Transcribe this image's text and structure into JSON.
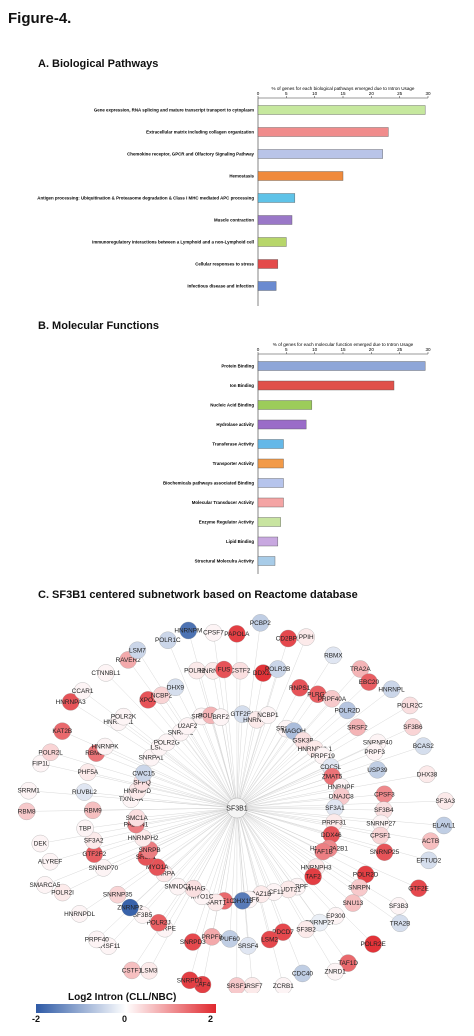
{
  "figure_title": "Figure-4.",
  "section_a_title": "A. Biological Pathways",
  "section_b_title": "B. Molecular Functions",
  "section_c_title": "C. SF3B1 centered subnetwork based on Reactome database",
  "chart_data": [
    {
      "type": "bar",
      "orientation": "horizontal",
      "title": "% of genes for each biological pathways emerged due to Intron Usage",
      "xlim": [
        0,
        30
      ],
      "xticks": [
        0,
        5,
        10,
        15,
        20,
        25,
        30
      ],
      "grid": false,
      "categories": [
        "Gene expression, RNA splicing and mature transcript transport to cytoplasm",
        "Extracellular matrix including collagen organization",
        "Chemokine receptor, GPCR and Olfactory Signaling Pathway",
        "Hemostasis",
        "Antigen processing: Ubiquitination & Proteasome degradation & Class I MHC mediated APC processing",
        "Muscle contraction",
        "Immunoregulatory interactions between a Lymphoid and a non-Lymphoid cell",
        "Cellular responses to stress",
        "Infectious disease and infection"
      ],
      "values": [
        29.5,
        23,
        22,
        15,
        6.5,
        6,
        5,
        3.5,
        3.2
      ],
      "colors": [
        "#c6e89e",
        "#f08c8c",
        "#b9c4e8",
        "#f08a3c",
        "#5fc3e8",
        "#9a78c8",
        "#b7d66a",
        "#e44a4a",
        "#6a8ad0"
      ]
    },
    {
      "type": "bar",
      "orientation": "horizontal",
      "title": "% of genes for each molecular function emerged due to Intron Usage",
      "xlim": [
        0,
        30
      ],
      "xticks": [
        0,
        5,
        10,
        15,
        20,
        25,
        30
      ],
      "grid": false,
      "categories": [
        "Protein Binding",
        "Ion Binding",
        "Nucleic Acid Binding",
        "Hydrolase activity",
        "Transferase Activity",
        "Transporter Activity",
        "Biochemicals pathways associated Binding",
        "Molecular Transducer Activity",
        "Enzyme Regulator Activity",
        "Lipid Binding",
        "Structural Moleculra Activity"
      ],
      "values": [
        29.5,
        24,
        9.5,
        8.5,
        4.5,
        4.5,
        4.5,
        4.5,
        4,
        3.5,
        3
      ],
      "colors": [
        "#8ea6d8",
        "#e0504a",
        "#9ccc5a",
        "#9a6cc8",
        "#64b8e8",
        "#f29a48",
        "#b6c4ec",
        "#f4a4a4",
        "#c8e4a0",
        "#c8a8e0",
        "#a8cce8"
      ]
    }
  ],
  "network": {
    "hub": "SF3B1",
    "nodes": [
      {
        "label": "PAPOLA",
        "v": 1.8
      },
      {
        "label": "CSTF2",
        "v": 0.3
      },
      {
        "label": "GTF2F1",
        "v": -0.4
      },
      {
        "label": "PCBP2",
        "v": -0.6
      },
      {
        "label": "DDX23",
        "v": 1.9
      },
      {
        "label": "HNRNPC",
        "v": 0.2
      },
      {
        "label": "CD2BP2",
        "v": 1.7
      },
      {
        "label": "POLR2B",
        "v": -0.5
      },
      {
        "label": "NCBP1",
        "v": 0.1
      },
      {
        "label": "PPIH",
        "v": 0.2
      },
      {
        "label": "RNPS1",
        "v": 1.6
      },
      {
        "label": "SRSF3",
        "v": 0.1
      },
      {
        "label": "RBMX",
        "v": -0.3
      },
      {
        "label": "PLRG1",
        "v": 1.5
      },
      {
        "label": "MAGOH",
        "v": -0.8
      },
      {
        "label": "TRA2A",
        "v": 0.7
      },
      {
        "label": "PRPF40A",
        "v": 0.5
      },
      {
        "label": "GSK3B",
        "v": 0.3
      },
      {
        "label": "EBC20",
        "v": 1.5
      },
      {
        "label": "POLR2D",
        "v": -0.7
      },
      {
        "label": "HNRNPUL1",
        "v": 0.2
      },
      {
        "label": "HNRNPL",
        "v": -0.5
      },
      {
        "label": "SRSF2",
        "v": 0.7
      },
      {
        "label": "PRPF19",
        "v": 0.1
      },
      {
        "label": "POLR2C",
        "v": 0.3
      },
      {
        "label": "SNRNP40",
        "v": 0.1
      },
      {
        "label": "CDC5L",
        "v": -0.3
      },
      {
        "label": "SF3B6",
        "v": 0.4
      },
      {
        "label": "PRPF3",
        "v": 0.1
      },
      {
        "label": "ZMAT5",
        "v": 1.3
      },
      {
        "label": "BCAS2",
        "v": -0.4
      },
      {
        "label": "USP39",
        "v": -0.6
      },
      {
        "label": "HNRNPF",
        "v": 0.1
      },
      {
        "label": "DHX38",
        "v": 0.2
      },
      {
        "label": "CPSF3",
        "v": 1.1
      },
      {
        "label": "DNAJC8",
        "v": 0.5
      },
      {
        "label": "SF3A3",
        "v": 0.2
      },
      {
        "label": "SF3B4",
        "v": 0.3
      },
      {
        "label": "SF3A1",
        "v": -0.3
      },
      {
        "label": "ELAVL1",
        "v": -0.6
      },
      {
        "label": "SNRNP27",
        "v": 0.1
      },
      {
        "label": "PRPF31",
        "v": 0.2
      },
      {
        "label": "ACTB",
        "v": 0.6
      },
      {
        "label": "CPSF1",
        "v": 0.4
      },
      {
        "label": "DDX46",
        "v": 1.6
      },
      {
        "label": "EFTUD2",
        "v": -0.4
      },
      {
        "label": "SNRNP25",
        "v": 1.6
      },
      {
        "label": "HNRNPA2B1",
        "v": 1.1
      },
      {
        "label": "GTF2E",
        "v": 1.7
      },
      {
        "label": "POLR2D",
        "v": 1.8
      },
      {
        "label": "TAF1B",
        "v": 1.2
      },
      {
        "label": "SF3B3",
        "v": 0.1
      },
      {
        "label": "SNRPN",
        "v": 0.5
      },
      {
        "label": "HNRNPH3",
        "v": 0.2
      },
      {
        "label": "TRA2B",
        "v": -0.4
      },
      {
        "label": "SNU13",
        "v": 0.6
      },
      {
        "label": "TAF2",
        "v": 1.8
      },
      {
        "label": "POLR2E",
        "v": 1.9
      },
      {
        "label": "EP300",
        "v": 0.1
      },
      {
        "label": "SNRPF",
        "v": 0.1
      },
      {
        "label": "TAF1D",
        "v": 1.4
      },
      {
        "label": "SNRNP27",
        "v": -0.2
      },
      {
        "label": "NUDT21",
        "v": 0.2
      },
      {
        "label": "ZNRD1",
        "v": 0.1
      },
      {
        "label": "SF3B2",
        "v": 0.2
      },
      {
        "label": "PCF11",
        "v": 0.1
      },
      {
        "label": "CDC40",
        "v": -0.6
      },
      {
        "label": "PDCD7",
        "v": 1.7
      },
      {
        "label": "BAZ1B",
        "v": 0.2
      },
      {
        "label": "ZCRB1",
        "v": 0.1
      },
      {
        "label": "LSM2",
        "v": 1.7
      },
      {
        "label": "SRSF6",
        "v": 0.1
      },
      {
        "label": "SRSF7",
        "v": 0.2
      },
      {
        "label": "SRSF4",
        "v": -0.3
      },
      {
        "label": "DHX15",
        "v": -1.6
      },
      {
        "label": "SRSF1",
        "v": 0.5
      },
      {
        "label": "PUF60",
        "v": -0.6
      },
      {
        "label": "TAF1C",
        "v": 1.4
      },
      {
        "label": "TAF4",
        "v": 1.8
      },
      {
        "label": "PRPF8",
        "v": 0.8
      },
      {
        "label": "SART1",
        "v": 0.2
      },
      {
        "label": "SNRPD1",
        "v": 1.8
      },
      {
        "label": "SNRPD3",
        "v": 1.7
      },
      {
        "label": "MYO1C",
        "v": 0.1
      },
      {
        "label": "LSM3",
        "v": 0.2
      },
      {
        "label": "SNRPE",
        "v": 0.1
      },
      {
        "label": "YWHAG",
        "v": 0.3
      },
      {
        "label": "CSTF1",
        "v": 0.6
      },
      {
        "label": "POLR2J",
        "v": 1.5
      },
      {
        "label": "SMNDC1",
        "v": 0.1
      },
      {
        "label": "SRSF11",
        "v": 0.1
      },
      {
        "label": "SF3B5",
        "v": 0.1
      },
      {
        "label": "SNRPA",
        "v": 0.2
      },
      {
        "label": "PRPF40",
        "v": 0.1
      },
      {
        "label": "ZNRNP2",
        "v": -1.9
      },
      {
        "label": "MYO1A",
        "v": 1.6
      },
      {
        "label": "HNRNPDL",
        "v": 0.1
      },
      {
        "label": "SNRNP35",
        "v": 0.4
      },
      {
        "label": "SRSF1",
        "v": 1.6
      },
      {
        "label": "POLR2I",
        "v": 0.2
      },
      {
        "label": "SNRNP70",
        "v": 0.1
      },
      {
        "label": "SNRPB",
        "v": 1.2
      },
      {
        "label": "SMARCA5",
        "v": 0.1
      },
      {
        "label": "GTF2F2",
        "v": 1.5
      },
      {
        "label": "HNRNPH2",
        "v": 0.2
      },
      {
        "label": "ALYREF",
        "v": 0.1
      },
      {
        "label": "SF3A2",
        "v": 0.2
      },
      {
        "label": "PABPN1",
        "v": 1.2
      },
      {
        "label": "DEK",
        "v": 0.1
      },
      {
        "label": "TBP",
        "v": 0.1
      },
      {
        "label": "SMC1A",
        "v": 0.3
      },
      {
        "label": "RBM8",
        "v": 0.5
      },
      {
        "label": "RBM9",
        "v": 0.6
      },
      {
        "label": "TXNL4A",
        "v": 0.1
      },
      {
        "label": "SRRM1",
        "v": 0.1
      },
      {
        "label": "RUVBL2",
        "v": -0.3
      },
      {
        "label": "HNRNPD",
        "v": 0.2
      },
      {
        "label": "FIP1L",
        "v": 0.1
      },
      {
        "label": "PHF5A",
        "v": 0.2
      },
      {
        "label": "SFPQ",
        "v": 0.3
      },
      {
        "label": "POLR2L",
        "v": 0.4
      },
      {
        "label": "RBM8A",
        "v": 1.3
      },
      {
        "label": "CWC15",
        "v": -0.5
      },
      {
        "label": "KAT2B",
        "v": 1.4
      },
      {
        "label": "HNRNPK",
        "v": 0.1
      },
      {
        "label": "SNRPA1",
        "v": 0.1
      },
      {
        "label": "HNRNPA3",
        "v": 1.6
      },
      {
        "label": "HNRNPA1",
        "v": 0.1
      },
      {
        "label": "LSM6",
        "v": 0.1
      },
      {
        "label": "CCAR1",
        "v": 0.1
      },
      {
        "label": "POLR2K",
        "v": 0.1
      },
      {
        "label": "POLR2G",
        "v": 0.1
      },
      {
        "label": "CTNNBL1",
        "v": 0.1
      },
      {
        "label": "XPO1",
        "v": 1.6
      },
      {
        "label": "SNRPB2",
        "v": 0.1
      },
      {
        "label": "RAVER2",
        "v": 0.8
      },
      {
        "label": "NCBP2",
        "v": 0.4
      },
      {
        "label": "U2AF2",
        "v": 0.1
      },
      {
        "label": "LSM7",
        "v": -0.5
      },
      {
        "label": "DHX9",
        "v": -0.4
      },
      {
        "label": "SRP72",
        "v": 0.1
      },
      {
        "label": "POLR1C",
        "v": -0.5
      },
      {
        "label": "POLR2A",
        "v": 0.2
      },
      {
        "label": "POLR1A",
        "v": 0.7
      },
      {
        "label": "HNRNPM",
        "v": -1.7
      },
      {
        "label": "HNRNPR",
        "v": 0.2
      },
      {
        "label": "BRF2",
        "v": 0.1
      },
      {
        "label": "CPSF7",
        "v": 0.1
      },
      {
        "label": "FUS",
        "v": 1.6
      }
    ]
  },
  "legend": {
    "title": "Log2 Intron (CLL/NBC)",
    "ticks": [
      "-2",
      "0",
      "2"
    ],
    "colors": {
      "low": "#2e5aa6",
      "mid": "#ffffff",
      "high": "#e0282e"
    }
  }
}
